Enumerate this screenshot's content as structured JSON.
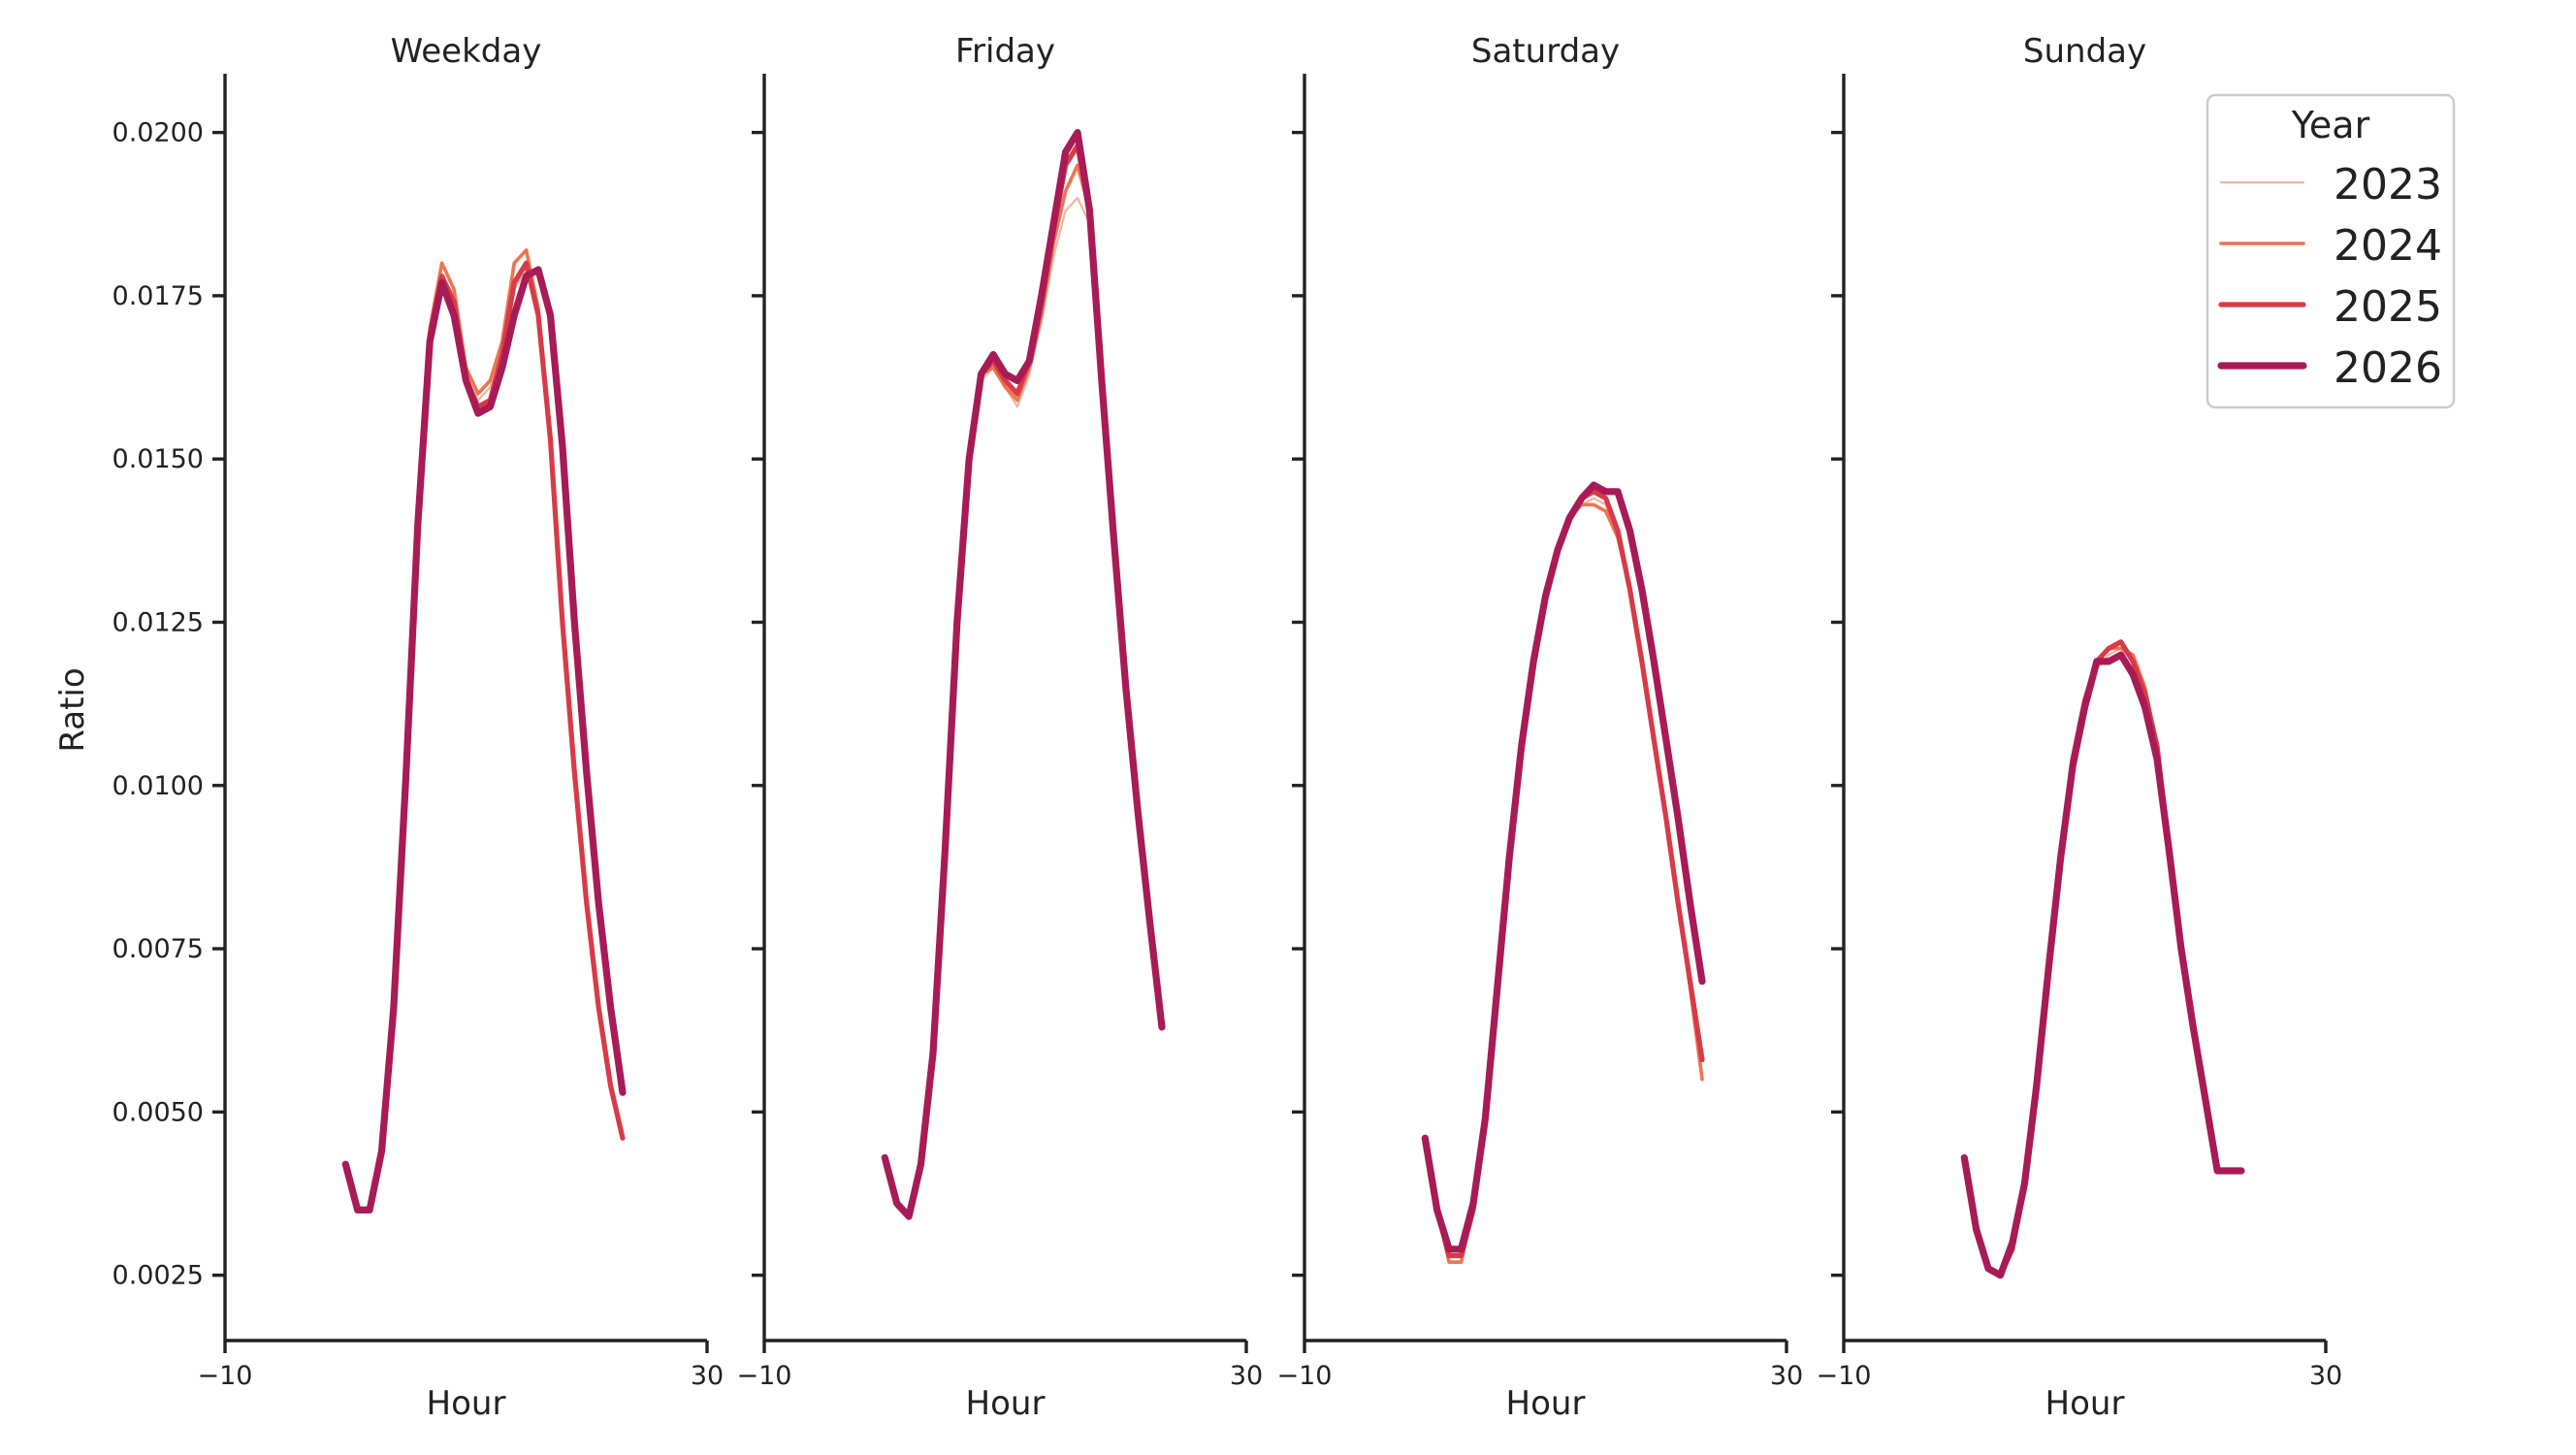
{
  "chart_data": {
    "type": "line",
    "ylabel": "Ratio",
    "ylim": [
      0.0015,
      0.0209
    ],
    "yticks": [
      0.0025,
      0.005,
      0.0075,
      0.01,
      0.0125,
      0.015,
      0.0175,
      0.02
    ],
    "ytick_labels": [
      "0.0025",
      "0.0050",
      "0.0075",
      "0.0100",
      "0.0125",
      "0.0150",
      "0.0175",
      "0.0200"
    ],
    "xlim": [
      -10,
      30
    ],
    "xticks": [
      -10,
      30
    ],
    "xtick_labels": [
      "−10",
      "30"
    ],
    "x": [
      0,
      1,
      2,
      3,
      4,
      5,
      6,
      7,
      8,
      9,
      10,
      11,
      12,
      13,
      14,
      15,
      16,
      17,
      18,
      19,
      20,
      21,
      22,
      23
    ],
    "legend": {
      "title": "Year",
      "position": "top-right",
      "entries": [
        {
          "name": "2023",
          "color": "#f4b49c",
          "width": 2.2
        },
        {
          "name": "2024",
          "color": "#ee7450",
          "width": 3.6
        },
        {
          "name": "2025",
          "color": "#d83a48",
          "width": 5.2
        },
        {
          "name": "2026",
          "color": "#a81b57",
          "width": 7.2
        }
      ]
    },
    "panels": [
      {
        "title": "Weekday",
        "xlabel": "Hour",
        "series": [
          {
            "name": "2023",
            "values": [
              0.0042,
              0.0035,
              0.0035,
              0.0044,
              0.0066,
              0.0101,
              0.0141,
              0.0169,
              0.0178,
              0.0175,
              0.0163,
              0.0159,
              0.0161,
              0.0167,
              0.0176,
              0.0179,
              0.0173,
              0.0153,
              0.0125,
              0.0102,
              0.0082,
              0.0066,
              0.0054,
              0.0046
            ]
          },
          {
            "name": "2024",
            "values": [
              0.0042,
              0.0035,
              0.0035,
              0.0044,
              0.0066,
              0.0102,
              0.0142,
              0.017,
              0.018,
              0.0176,
              0.0164,
              0.016,
              0.0162,
              0.0168,
              0.018,
              0.0182,
              0.0173,
              0.0153,
              0.0125,
              0.0102,
              0.0082,
              0.0066,
              0.0054,
              0.0046
            ]
          },
          {
            "name": "2025",
            "values": [
              0.0042,
              0.0035,
              0.0035,
              0.0044,
              0.0066,
              0.0101,
              0.0141,
              0.0169,
              0.0178,
              0.0174,
              0.0162,
              0.0158,
              0.0159,
              0.0166,
              0.0177,
              0.018,
              0.0172,
              0.0153,
              0.0125,
              0.0102,
              0.0082,
              0.0066,
              0.0054,
              0.0046
            ]
          },
          {
            "name": "2026",
            "values": [
              0.0042,
              0.0035,
              0.0035,
              0.0044,
              0.0066,
              0.0101,
              0.014,
              0.0168,
              0.0177,
              0.0172,
              0.0162,
              0.0157,
              0.0158,
              0.0164,
              0.0172,
              0.0178,
              0.0179,
              0.0172,
              0.0152,
              0.0125,
              0.0102,
              0.0082,
              0.0066,
              0.0053
            ]
          }
        ]
      },
      {
        "title": "Friday",
        "xlabel": "Hour",
        "series": [
          {
            "name": "2023",
            "values": [
              0.0043,
              0.0036,
              0.0034,
              0.0042,
              0.0059,
              0.009,
              0.0125,
              0.015,
              0.0162,
              0.0164,
              0.0161,
              0.0158,
              0.0163,
              0.0171,
              0.0181,
              0.0188,
              0.019,
              0.0186,
              0.0162,
              0.0138,
              0.0115,
              0.0096,
              0.0079,
              0.0063
            ]
          },
          {
            "name": "2024",
            "values": [
              0.0043,
              0.0036,
              0.0034,
              0.0042,
              0.0059,
              0.009,
              0.0125,
              0.015,
              0.0163,
              0.0164,
              0.0161,
              0.0159,
              0.0164,
              0.0172,
              0.0183,
              0.0191,
              0.0195,
              0.0188,
              0.0162,
              0.0138,
              0.0115,
              0.0096,
              0.0079,
              0.0063
            ]
          },
          {
            "name": "2025",
            "values": [
              0.0043,
              0.0036,
              0.0034,
              0.0042,
              0.0059,
              0.009,
              0.0125,
              0.015,
              0.0163,
              0.0165,
              0.0162,
              0.016,
              0.0165,
              0.0174,
              0.0185,
              0.0195,
              0.0198,
              0.0188,
              0.0162,
              0.0138,
              0.0115,
              0.0096,
              0.0079,
              0.0063
            ]
          },
          {
            "name": "2026",
            "values": [
              0.0043,
              0.0036,
              0.0034,
              0.0042,
              0.0059,
              0.009,
              0.0125,
              0.015,
              0.0163,
              0.0166,
              0.0163,
              0.0162,
              0.0165,
              0.0175,
              0.0186,
              0.0197,
              0.02,
              0.0188,
              0.0162,
              0.0138,
              0.0115,
              0.0096,
              0.0079,
              0.0063
            ]
          }
        ]
      },
      {
        "title": "Saturday",
        "xlabel": "Hour",
        "series": [
          {
            "name": "2023",
            "values": [
              0.0046,
              0.0035,
              0.0028,
              0.0028,
              0.0035,
              0.0049,
              0.0069,
              0.0089,
              0.0106,
              0.0119,
              0.0129,
              0.0136,
              0.0141,
              0.0143,
              0.0144,
              0.0143,
              0.0138,
              0.013,
              0.0119,
              0.0107,
              0.0095,
              0.0082,
              0.0069,
              0.0056
            ]
          },
          {
            "name": "2024",
            "values": [
              0.0046,
              0.0035,
              0.0027,
              0.0027,
              0.0035,
              0.0049,
              0.0069,
              0.0089,
              0.0106,
              0.0119,
              0.0129,
              0.0136,
              0.0141,
              0.0143,
              0.0143,
              0.0142,
              0.0138,
              0.013,
              0.0119,
              0.0107,
              0.0095,
              0.0082,
              0.0069,
              0.0055
            ]
          },
          {
            "name": "2025",
            "values": [
              0.0046,
              0.0035,
              0.0028,
              0.0028,
              0.0035,
              0.0049,
              0.0069,
              0.0089,
              0.0106,
              0.0119,
              0.0129,
              0.0136,
              0.0141,
              0.0144,
              0.0145,
              0.0144,
              0.0139,
              0.013,
              0.0119,
              0.0107,
              0.0095,
              0.0082,
              0.007,
              0.0058
            ]
          },
          {
            "name": "2026",
            "values": [
              0.0046,
              0.0035,
              0.0029,
              0.0029,
              0.0036,
              0.0049,
              0.0069,
              0.0089,
              0.0106,
              0.0119,
              0.0129,
              0.0136,
              0.0141,
              0.0144,
              0.0146,
              0.0145,
              0.0145,
              0.0139,
              0.013,
              0.0119,
              0.0107,
              0.0095,
              0.0082,
              0.007
            ]
          }
        ]
      },
      {
        "title": "Sunday",
        "xlabel": "Hour",
        "series": [
          {
            "name": "2023",
            "values": [
              0.0043,
              0.0032,
              0.0026,
              0.0025,
              0.0029,
              0.0039,
              0.0054,
              0.0072,
              0.0089,
              0.0103,
              0.0112,
              0.0118,
              0.012,
              0.0121,
              0.0119,
              0.0114,
              0.0105,
              0.009,
              0.0075,
              0.0063,
              0.0052,
              0.0041,
              0.0041,
              0.0041
            ]
          },
          {
            "name": "2024",
            "values": [
              0.0043,
              0.0032,
              0.0026,
              0.0025,
              0.0029,
              0.0039,
              0.0054,
              0.0072,
              0.0089,
              0.0104,
              0.0113,
              0.0119,
              0.0121,
              0.0121,
              0.012,
              0.0115,
              0.0106,
              0.009,
              0.0075,
              0.0063,
              0.0052,
              0.0041,
              0.0041,
              0.0041
            ]
          },
          {
            "name": "2025",
            "values": [
              0.0043,
              0.0032,
              0.0026,
              0.0025,
              0.0029,
              0.0039,
              0.0054,
              0.0072,
              0.0089,
              0.0104,
              0.0113,
              0.0119,
              0.0121,
              0.0122,
              0.0119,
              0.0114,
              0.0106,
              0.009,
              0.0075,
              0.0063,
              0.0052,
              0.0041,
              0.0041,
              0.0041
            ]
          },
          {
            "name": "2026",
            "values": [
              0.0043,
              0.0032,
              0.0026,
              0.0025,
              0.003,
              0.0039,
              0.0054,
              0.0072,
              0.0089,
              0.0103,
              0.0112,
              0.0119,
              0.0119,
              0.012,
              0.0117,
              0.0112,
              0.0104,
              0.009,
              0.0075,
              0.0063,
              0.0052,
              0.0041,
              0.0041,
              0.0041
            ]
          }
        ]
      }
    ]
  }
}
